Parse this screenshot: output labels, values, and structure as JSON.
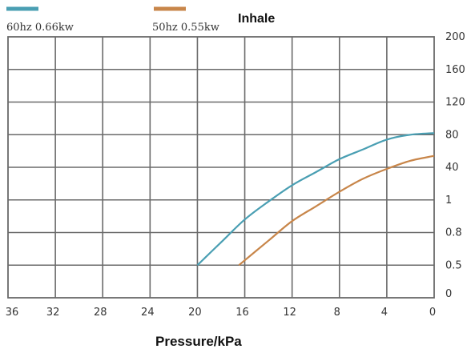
{
  "chart_data": {
    "type": "line",
    "title": "Inhale",
    "xlabel": "Pressure/kPa",
    "x_ticks": [
      "36",
      "32",
      "28",
      "24",
      "20",
      "16",
      "12",
      "8",
      "4",
      "0"
    ],
    "y_ticks": [
      "0",
      "0.5",
      "0.8",
      "1",
      "40",
      "80",
      "120",
      "160",
      "200"
    ],
    "xlim": [
      36,
      0
    ],
    "grid": true,
    "legend_position": "top-left",
    "series": [
      {
        "name": "60hz 0.66kw",
        "color": "#4a9fb3",
        "points": [
          [
            20,
            1
          ],
          [
            18,
            1.7
          ],
          [
            16,
            2.4
          ],
          [
            14,
            2.95
          ],
          [
            12,
            3.45
          ],
          [
            10,
            3.85
          ],
          [
            8,
            4.25
          ],
          [
            6,
            4.55
          ],
          [
            4,
            4.85
          ],
          [
            2,
            5.0
          ],
          [
            0,
            5.05
          ]
        ]
      },
      {
        "name": "50hz 0.55kw",
        "color": "#c8864a",
        "points": [
          [
            16.5,
            1
          ],
          [
            14,
            1.75
          ],
          [
            12,
            2.35
          ],
          [
            10,
            2.8
          ],
          [
            8,
            3.25
          ],
          [
            6,
            3.65
          ],
          [
            4,
            3.95
          ],
          [
            2,
            4.2
          ],
          [
            0,
            4.35
          ]
        ]
      }
    ]
  }
}
